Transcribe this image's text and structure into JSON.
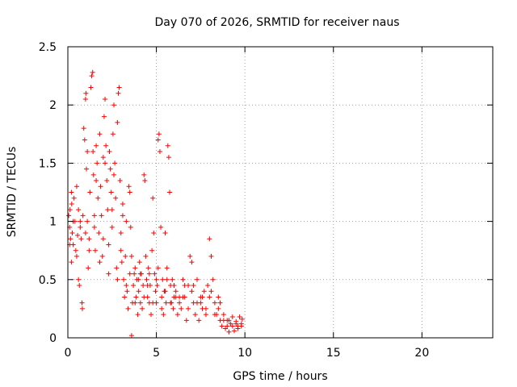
{
  "chart_data": {
    "type": "scatter",
    "title": "Day 070 of 2026, SRMTID for receiver naus",
    "xlabel": "GPS time / hours",
    "ylabel": "SRMTID / TECUs",
    "xlim": [
      0,
      24
    ],
    "ylim": [
      0,
      2.5
    ],
    "x_ticks": [
      0,
      5,
      10,
      15,
      20
    ],
    "x_tick_labels": [
      "0",
      "5",
      "10",
      "15",
      "20"
    ],
    "y_ticks": [
      0,
      0.5,
      1,
      1.5,
      2,
      2.5
    ],
    "y_tick_labels": [
      "0",
      "0.5",
      "1",
      "1.5",
      "2",
      "2.5"
    ],
    "grid": true,
    "marker": "+",
    "series": [
      {
        "name": "SRMTID",
        "color": "#ff0000",
        "points": [
          [
            0.05,
            1.05
          ],
          [
            0.1,
            0.95
          ],
          [
            0.12,
            1.1
          ],
          [
            0.15,
            0.85
          ],
          [
            0.2,
            0.65
          ],
          [
            0.22,
            1.15
          ],
          [
            0.25,
            0.9
          ],
          [
            0.3,
            0.8
          ],
          [
            0.35,
            1.2
          ],
          [
            0.4,
            1.0
          ],
          [
            0.45,
            0.75
          ],
          [
            0.5,
            1.3
          ],
          [
            0.55,
            0.88
          ],
          [
            0.6,
            0.5
          ],
          [
            0.65,
            0.45
          ],
          [
            0.7,
            0.95
          ],
          [
            0.75,
            0.85
          ],
          [
            0.8,
            0.3
          ],
          [
            0.82,
            0.25
          ],
          [
            0.85,
            1.05
          ],
          [
            0.9,
            1.8
          ],
          [
            0.95,
            1.7
          ],
          [
            1.0,
            2.05
          ],
          [
            1.02,
            2.1
          ],
          [
            1.05,
            1.45
          ],
          [
            1.1,
            1.0
          ],
          [
            1.15,
            0.6
          ],
          [
            1.2,
            0.85
          ],
          [
            1.25,
            1.25
          ],
          [
            1.3,
            2.15
          ],
          [
            1.35,
            2.25
          ],
          [
            1.4,
            2.28
          ],
          [
            1.42,
            1.6
          ],
          [
            1.45,
            1.4
          ],
          [
            1.5,
            0.95
          ],
          [
            1.55,
            0.75
          ],
          [
            1.6,
            1.65
          ],
          [
            1.65,
            1.5
          ],
          [
            1.7,
            1.2
          ],
          [
            1.75,
            0.9
          ],
          [
            1.8,
            1.75
          ],
          [
            1.85,
            1.3
          ],
          [
            1.9,
            1.05
          ],
          [
            1.95,
            0.7
          ],
          [
            2.0,
            1.55
          ],
          [
            2.05,
            1.9
          ],
          [
            2.1,
            2.05
          ],
          [
            2.15,
            1.65
          ],
          [
            2.2,
            1.35
          ],
          [
            2.25,
            1.1
          ],
          [
            2.3,
            0.8
          ],
          [
            2.35,
            1.6
          ],
          [
            2.4,
            1.45
          ],
          [
            2.45,
            1.25
          ],
          [
            2.5,
            0.95
          ],
          [
            2.55,
            1.75
          ],
          [
            2.6,
            2.0
          ],
          [
            2.65,
            1.5
          ],
          [
            2.7,
            1.2
          ],
          [
            2.75,
            0.6
          ],
          [
            2.8,
            1.85
          ],
          [
            2.85,
            2.1
          ],
          [
            2.9,
            2.15
          ],
          [
            2.95,
            1.35
          ],
          [
            3.0,
            0.9
          ],
          [
            3.05,
            0.65
          ],
          [
            3.1,
            1.15
          ],
          [
            3.15,
            0.5
          ],
          [
            3.2,
            0.35
          ],
          [
            3.25,
            0.7
          ],
          [
            3.3,
            1.0
          ],
          [
            3.35,
            0.4
          ],
          [
            3.4,
            0.25
          ],
          [
            3.45,
            1.3
          ],
          [
            3.5,
            1.25
          ],
          [
            3.55,
            0.95
          ],
          [
            3.6,
            0.02
          ],
          [
            3.65,
            0.3
          ],
          [
            3.7,
            0.45
          ],
          [
            3.75,
            0.55
          ],
          [
            3.8,
            0.6
          ],
          [
            3.85,
            0.35
          ],
          [
            3.9,
            0.5
          ],
          [
            3.95,
            0.2
          ],
          [
            4.0,
            0.4
          ],
          [
            4.05,
            0.65
          ],
          [
            4.1,
            0.3
          ],
          [
            4.15,
            0.55
          ],
          [
            4.2,
            0.25
          ],
          [
            4.25,
            0.45
          ],
          [
            4.3,
            1.4
          ],
          [
            4.35,
            1.35
          ],
          [
            4.4,
            0.7
          ],
          [
            4.45,
            0.5
          ],
          [
            4.5,
            0.35
          ],
          [
            4.55,
            0.6
          ],
          [
            4.6,
            0.3
          ],
          [
            4.65,
            0.45
          ],
          [
            4.7,
            0.2
          ],
          [
            4.75,
            0.75
          ],
          [
            4.8,
            1.2
          ],
          [
            4.85,
            0.9
          ],
          [
            4.9,
            0.55
          ],
          [
            4.95,
            0.4
          ],
          [
            5.0,
            0.3
          ],
          [
            5.05,
            0.45
          ],
          [
            5.1,
            1.7
          ],
          [
            5.15,
            1.75
          ],
          [
            5.2,
            1.6
          ],
          [
            5.25,
            0.95
          ],
          [
            5.3,
            0.35
          ],
          [
            5.35,
            0.5
          ],
          [
            5.4,
            0.2
          ],
          [
            5.45,
            0.4
          ],
          [
            5.5,
            0.9
          ],
          [
            5.55,
            0.3
          ],
          [
            5.6,
            0.6
          ],
          [
            5.65,
            1.65
          ],
          [
            5.7,
            1.55
          ],
          [
            5.75,
            1.25
          ],
          [
            5.8,
            0.45
          ],
          [
            5.85,
            0.3
          ],
          [
            5.9,
            0.5
          ],
          [
            5.95,
            0.25
          ],
          [
            6.0,
            0.35
          ],
          [
            6.1,
            0.4
          ],
          [
            6.2,
            0.2
          ],
          [
            6.3,
            0.3
          ],
          [
            6.4,
            0.25
          ],
          [
            6.5,
            0.5
          ],
          [
            6.6,
            0.35
          ],
          [
            6.7,
            0.15
          ],
          [
            6.8,
            0.45
          ],
          [
            6.9,
            0.7
          ],
          [
            7.0,
            0.65
          ],
          [
            7.1,
            0.3
          ],
          [
            7.2,
            0.2
          ],
          [
            7.3,
            0.5
          ],
          [
            7.4,
            0.15
          ],
          [
            7.5,
            0.35
          ],
          [
            7.6,
            0.25
          ],
          [
            7.7,
            0.4
          ],
          [
            7.8,
            0.2
          ],
          [
            7.9,
            0.45
          ],
          [
            8.0,
            0.85
          ],
          [
            8.1,
            0.7
          ],
          [
            8.2,
            0.5
          ],
          [
            8.3,
            0.3
          ],
          [
            8.4,
            0.2
          ],
          [
            8.5,
            0.35
          ],
          [
            8.6,
            0.15
          ],
          [
            8.7,
            0.1
          ],
          [
            8.8,
            0.2
          ],
          [
            8.9,
            0.08
          ],
          [
            9.0,
            0.15
          ],
          [
            9.1,
            0.05
          ],
          [
            9.2,
            0.12
          ],
          [
            9.3,
            0.18
          ],
          [
            9.4,
            0.06
          ],
          [
            9.5,
            0.14
          ],
          [
            9.6,
            0.1
          ],
          [
            9.7,
            0.18
          ],
          [
            9.8,
            0.12
          ],
          [
            9.85,
            0.16
          ],
          [
            0.3,
            1.0
          ],
          [
            0.6,
            1.1
          ],
          [
            1.0,
            0.9
          ],
          [
            1.5,
            1.05
          ],
          [
            2.0,
            0.85
          ],
          [
            2.5,
            1.1
          ],
          [
            3.0,
            0.75
          ],
          [
            3.5,
            0.55
          ],
          [
            4.0,
            0.5
          ],
          [
            4.5,
            0.45
          ],
          [
            5.0,
            0.5
          ],
          [
            5.5,
            0.4
          ],
          [
            6.0,
            0.45
          ],
          [
            6.5,
            0.35
          ],
          [
            7.0,
            0.4
          ],
          [
            7.5,
            0.3
          ],
          [
            8.0,
            0.35
          ],
          [
            8.5,
            0.25
          ],
          [
            9.0,
            0.1
          ],
          [
            9.5,
            0.12
          ],
          [
            0.1,
            0.8
          ],
          [
            0.5,
            0.7
          ],
          [
            1.2,
            0.75
          ],
          [
            1.8,
            0.65
          ],
          [
            2.3,
            0.55
          ],
          [
            2.8,
            0.5
          ],
          [
            3.3,
            0.45
          ],
          [
            3.8,
            0.3
          ],
          [
            4.3,
            0.35
          ],
          [
            4.8,
            0.3
          ],
          [
            5.3,
            0.25
          ],
          [
            5.8,
            0.3
          ],
          [
            6.3,
            0.35
          ],
          [
            6.8,
            0.25
          ],
          [
            7.3,
            0.3
          ],
          [
            7.8,
            0.25
          ],
          [
            8.3,
            0.2
          ],
          [
            8.8,
            0.15
          ],
          [
            9.3,
            0.1
          ],
          [
            9.8,
            0.1
          ],
          [
            0.2,
            1.25
          ],
          [
            0.7,
            1.0
          ],
          [
            1.1,
            1.6
          ],
          [
            1.6,
            1.35
          ],
          [
            2.1,
            1.5
          ],
          [
            2.6,
            1.4
          ],
          [
            3.1,
            1.05
          ],
          [
            3.6,
            0.7
          ],
          [
            4.1,
            0.55
          ],
          [
            4.6,
            0.55
          ],
          [
            5.1,
            0.6
          ],
          [
            5.6,
            0.5
          ],
          [
            6.1,
            0.35
          ],
          [
            6.6,
            0.45
          ],
          [
            7.1,
            0.45
          ],
          [
            7.6,
            0.35
          ],
          [
            8.1,
            0.4
          ],
          [
            8.6,
            0.3
          ],
          [
            9.1,
            0.15
          ],
          [
            9.6,
            0.08
          ]
        ]
      }
    ]
  }
}
